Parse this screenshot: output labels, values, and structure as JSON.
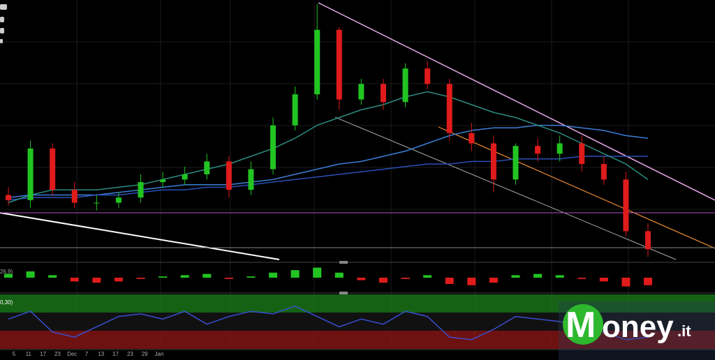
{
  "chart_data": {
    "type": "candlestick",
    "open": [
      25,
      23,
      43,
      27,
      22,
      22,
      24,
      30,
      31,
      33,
      38,
      27,
      35,
      52,
      64,
      89,
      62,
      68,
      61,
      74,
      68,
      49,
      45,
      31,
      44,
      41,
      45,
      37,
      31,
      11
    ],
    "high": [
      28,
      46,
      45,
      30,
      25,
      26,
      33,
      34,
      36,
      41,
      40,
      38,
      55,
      67,
      99,
      90,
      70,
      70,
      76,
      77,
      70,
      53,
      48,
      45,
      47,
      48,
      48,
      40,
      34,
      14
    ],
    "low": [
      21,
      20,
      25,
      20,
      19,
      20,
      22,
      28,
      29,
      31,
      24,
      25,
      33,
      50,
      62,
      58,
      60,
      58,
      59,
      66,
      46,
      42,
      26,
      29,
      38,
      38,
      34,
      29,
      9,
      1
    ],
    "close": [
      23,
      43,
      27,
      22,
      22,
      24,
      30,
      31,
      33,
      38,
      27,
      35,
      52,
      64,
      89,
      62,
      68,
      61,
      74,
      68,
      49,
      45,
      31,
      44,
      41,
      45,
      37,
      31,
      11,
      4
    ],
    "up_color": "#22c422",
    "down_color": "#e01b1b",
    "ylim": [
      0,
      100
    ],
    "series": [
      {
        "color": "#3c7fd6",
        "values": [
          24,
          25,
          25,
          25,
          25,
          26,
          27,
          28,
          29,
          29,
          29,
          30,
          31,
          33,
          35,
          37,
          38,
          40,
          42,
          45,
          48,
          50,
          51,
          51,
          52,
          52,
          51,
          50,
          48,
          47
        ]
      },
      {
        "color": "#2a4fb8",
        "values": [
          23,
          24,
          24,
          24,
          25,
          25,
          26,
          27,
          27,
          28,
          28,
          29,
          30,
          31,
          32,
          33,
          34,
          35,
          36,
          37,
          37,
          38,
          38,
          39,
          39,
          39,
          40,
          40,
          40,
          40
        ]
      },
      {
        "color": "#2c8c80",
        "values": [
          22,
          25,
          27,
          27,
          27,
          28,
          29,
          31,
          33,
          35,
          37,
          40,
          43,
          47,
          52,
          55,
          58,
          60,
          63,
          65,
          63,
          60,
          57,
          55,
          52,
          49,
          45,
          41,
          37,
          31
        ]
      }
    ],
    "macd": {
      "label": "26,9)",
      "ylim": [
        -1,
        1
      ],
      "values": [
        0.3,
        0.5,
        0.2,
        -0.3,
        -0.4,
        -0.3,
        -0.1,
        0.1,
        0.2,
        0.3,
        -0.1,
        0.1,
        0.4,
        0.6,
        0.8,
        0.4,
        -0.2,
        -0.4,
        -0.1,
        0.2,
        -0.5,
        -0.6,
        -0.4,
        0.2,
        0.3,
        0.2,
        -0.1,
        -0.3,
        -0.7,
        -0.6
      ]
    },
    "stochastic": {
      "label": "0,30)",
      "ylim": [
        0,
        100
      ],
      "color": "#3a4fd0",
      "values": [
        55,
        70,
        30,
        20,
        40,
        60,
        65,
        55,
        70,
        45,
        60,
        70,
        65,
        80,
        60,
        40,
        55,
        45,
        70,
        60,
        20,
        15,
        35,
        60,
        55,
        50,
        40,
        30,
        15,
        20
      ]
    },
    "x_labels": [
      "5",
      "11",
      "17",
      "23",
      "Dec",
      "7",
      "13",
      "17",
      "23",
      "29",
      "Jan"
    ]
  },
  "logo": {
    "initial": "M",
    "rest": "oney",
    "tld": ".it"
  }
}
